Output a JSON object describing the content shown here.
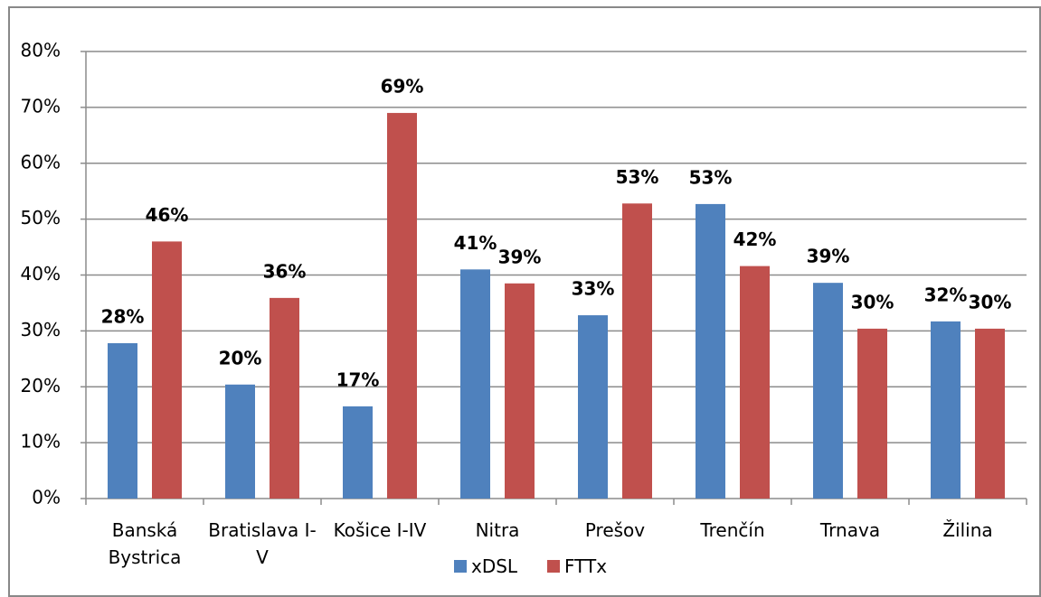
{
  "chart_data": {
    "type": "bar",
    "categories": [
      "Banská Bystrica",
      "Bratislava I-V",
      "Košice I-IV",
      "Nitra",
      "Prešov",
      "Trenčín",
      "Trnava",
      "Žilina"
    ],
    "series": [
      {
        "name": "xDSL",
        "color": "#4f81bd",
        "values": [
          27.8,
          20.4,
          16.5,
          41.0,
          32.8,
          52.7,
          38.6,
          31.7
        ],
        "value_labels": [
          "28%",
          "20%",
          "17%",
          "41%",
          "33%",
          "53%",
          "39%",
          "32%"
        ]
      },
      {
        "name": "FTTx",
        "color": "#c0504d",
        "values": [
          46.0,
          35.9,
          69.0,
          38.5,
          52.8,
          41.6,
          30.4,
          30.4
        ],
        "value_labels": [
          "46%",
          "36%",
          "69%",
          "39%",
          "53%",
          "42%",
          "30%",
          "30%"
        ]
      }
    ],
    "ylim": [
      0,
      80
    ],
    "yticks": [
      {
        "value": 0,
        "label": "0%"
      },
      {
        "value": 10,
        "label": "10%"
      },
      {
        "value": 20,
        "label": "20%"
      },
      {
        "value": 30,
        "label": "30%"
      },
      {
        "value": 40,
        "label": "40%"
      },
      {
        "value": 50,
        "label": "50%"
      },
      {
        "value": 60,
        "label": "60%"
      },
      {
        "value": 70,
        "label": "70%"
      },
      {
        "value": 80,
        "label": "80%"
      }
    ],
    "grid": true,
    "legend": "bottom"
  }
}
